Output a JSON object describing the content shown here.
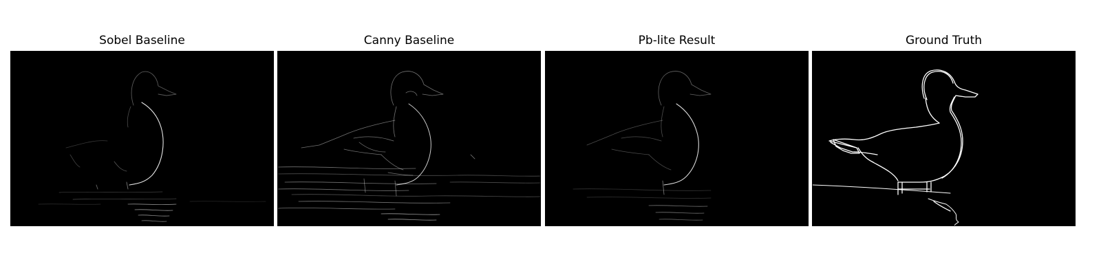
{
  "panels": [
    {
      "title": "Sobel Baseline",
      "style": "sobel"
    },
    {
      "title": "Canny Baseline",
      "style": "canny"
    },
    {
      "title": "Pb-lite Result",
      "style": "pblite"
    },
    {
      "title": "Ground Truth",
      "style": "ground-truth"
    }
  ],
  "colors": {
    "background": "#ffffff",
    "image_background": "#000000",
    "edge": "#ffffff"
  }
}
